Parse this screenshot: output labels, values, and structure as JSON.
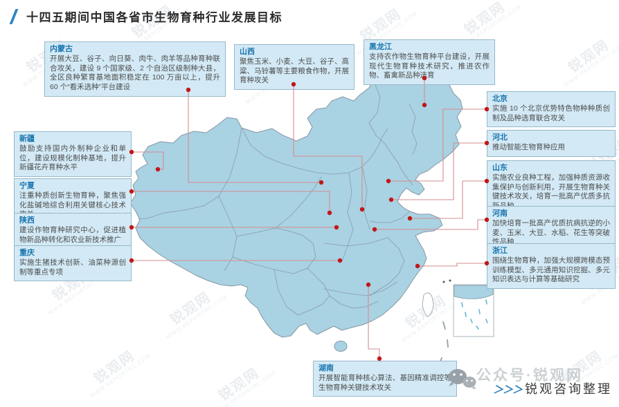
{
  "title": "十四五期间中国各省市生物育种行业发展目标",
  "provinces": [
    {
      "name": "内蒙古",
      "desc": "开展大豆、谷子、向日葵、肉牛、肉羊等品种育种联合攻关，建设 9 个国家级、2 个自治区级制种大县，全区良种繁育基地面积稳定在 100 万亩以上，提升 60 个“看禾选种”平台建设"
    },
    {
      "name": "山西",
      "desc": "聚焦玉米、小麦、大豆、谷子、高粱、马铃薯等主要粮食作物，开展育种攻关"
    },
    {
      "name": "黑龙江",
      "desc": "支持农作物生物育种平台建设，开展现代生物育种技术研究，推进农作物、畜禽新品种选育"
    },
    {
      "name": "北京",
      "desc": "实施 10 个北京优势特色物种种质创制及品种选育联合攻关"
    },
    {
      "name": "河北",
      "desc": "推动智能生物育种应用"
    },
    {
      "name": "山东",
      "desc": "实施农业良种工程，加强种质资源收集保护与创新利用，开展生物育种关键技术攻关，培育一批高产优质多抗新品种"
    },
    {
      "name": "河南",
      "desc": "加快培育一批高产优质抗病抗逆的小麦、玉米、大豆、水稻、花生等突破性品种"
    },
    {
      "name": "浙江",
      "desc": "围绕生物育种，加强大规模跨模态预训练模型、多元通用知识挖掘、多元知识表达与计算等基础研究"
    },
    {
      "name": "新疆",
      "desc": "鼓励支持国内外制种企业和单位，建设规模化制种基地，提升新疆花卉育种水平"
    },
    {
      "name": "宁夏",
      "desc": "注重种质创新生物育种，聚焦强化盐碱地综合利用关键核心技术攻关"
    },
    {
      "name": "陕西",
      "desc": "建设作物育种研究中心，促进植物新品种转化和农业新技术推广"
    },
    {
      "name": "重庆",
      "desc": "实施生猪技术创新、油菜种源创制等重点专项"
    },
    {
      "name": "湖南",
      "desc": "开展智能育种核心算法、基因精准调控等生物育种关键技术攻关"
    }
  ],
  "footer": {
    "wechat_watermark": "公众号·锐观网",
    "chevrons": "＞＞＞",
    "credit": "锐观咨询整理"
  },
  "watermark": {
    "logo_text": "锐观网",
    "url_text": "WWW.REPORTRC.COM"
  },
  "colors": {
    "accent_blue": "#1a74ad",
    "map_fill": "#a9d2e3",
    "map_border": "#8496a3",
    "box_fill": "#d3eaf6",
    "box_border": "#97b7c8",
    "connector_red": "#d68c8c",
    "dot_red": "#c01818"
  }
}
